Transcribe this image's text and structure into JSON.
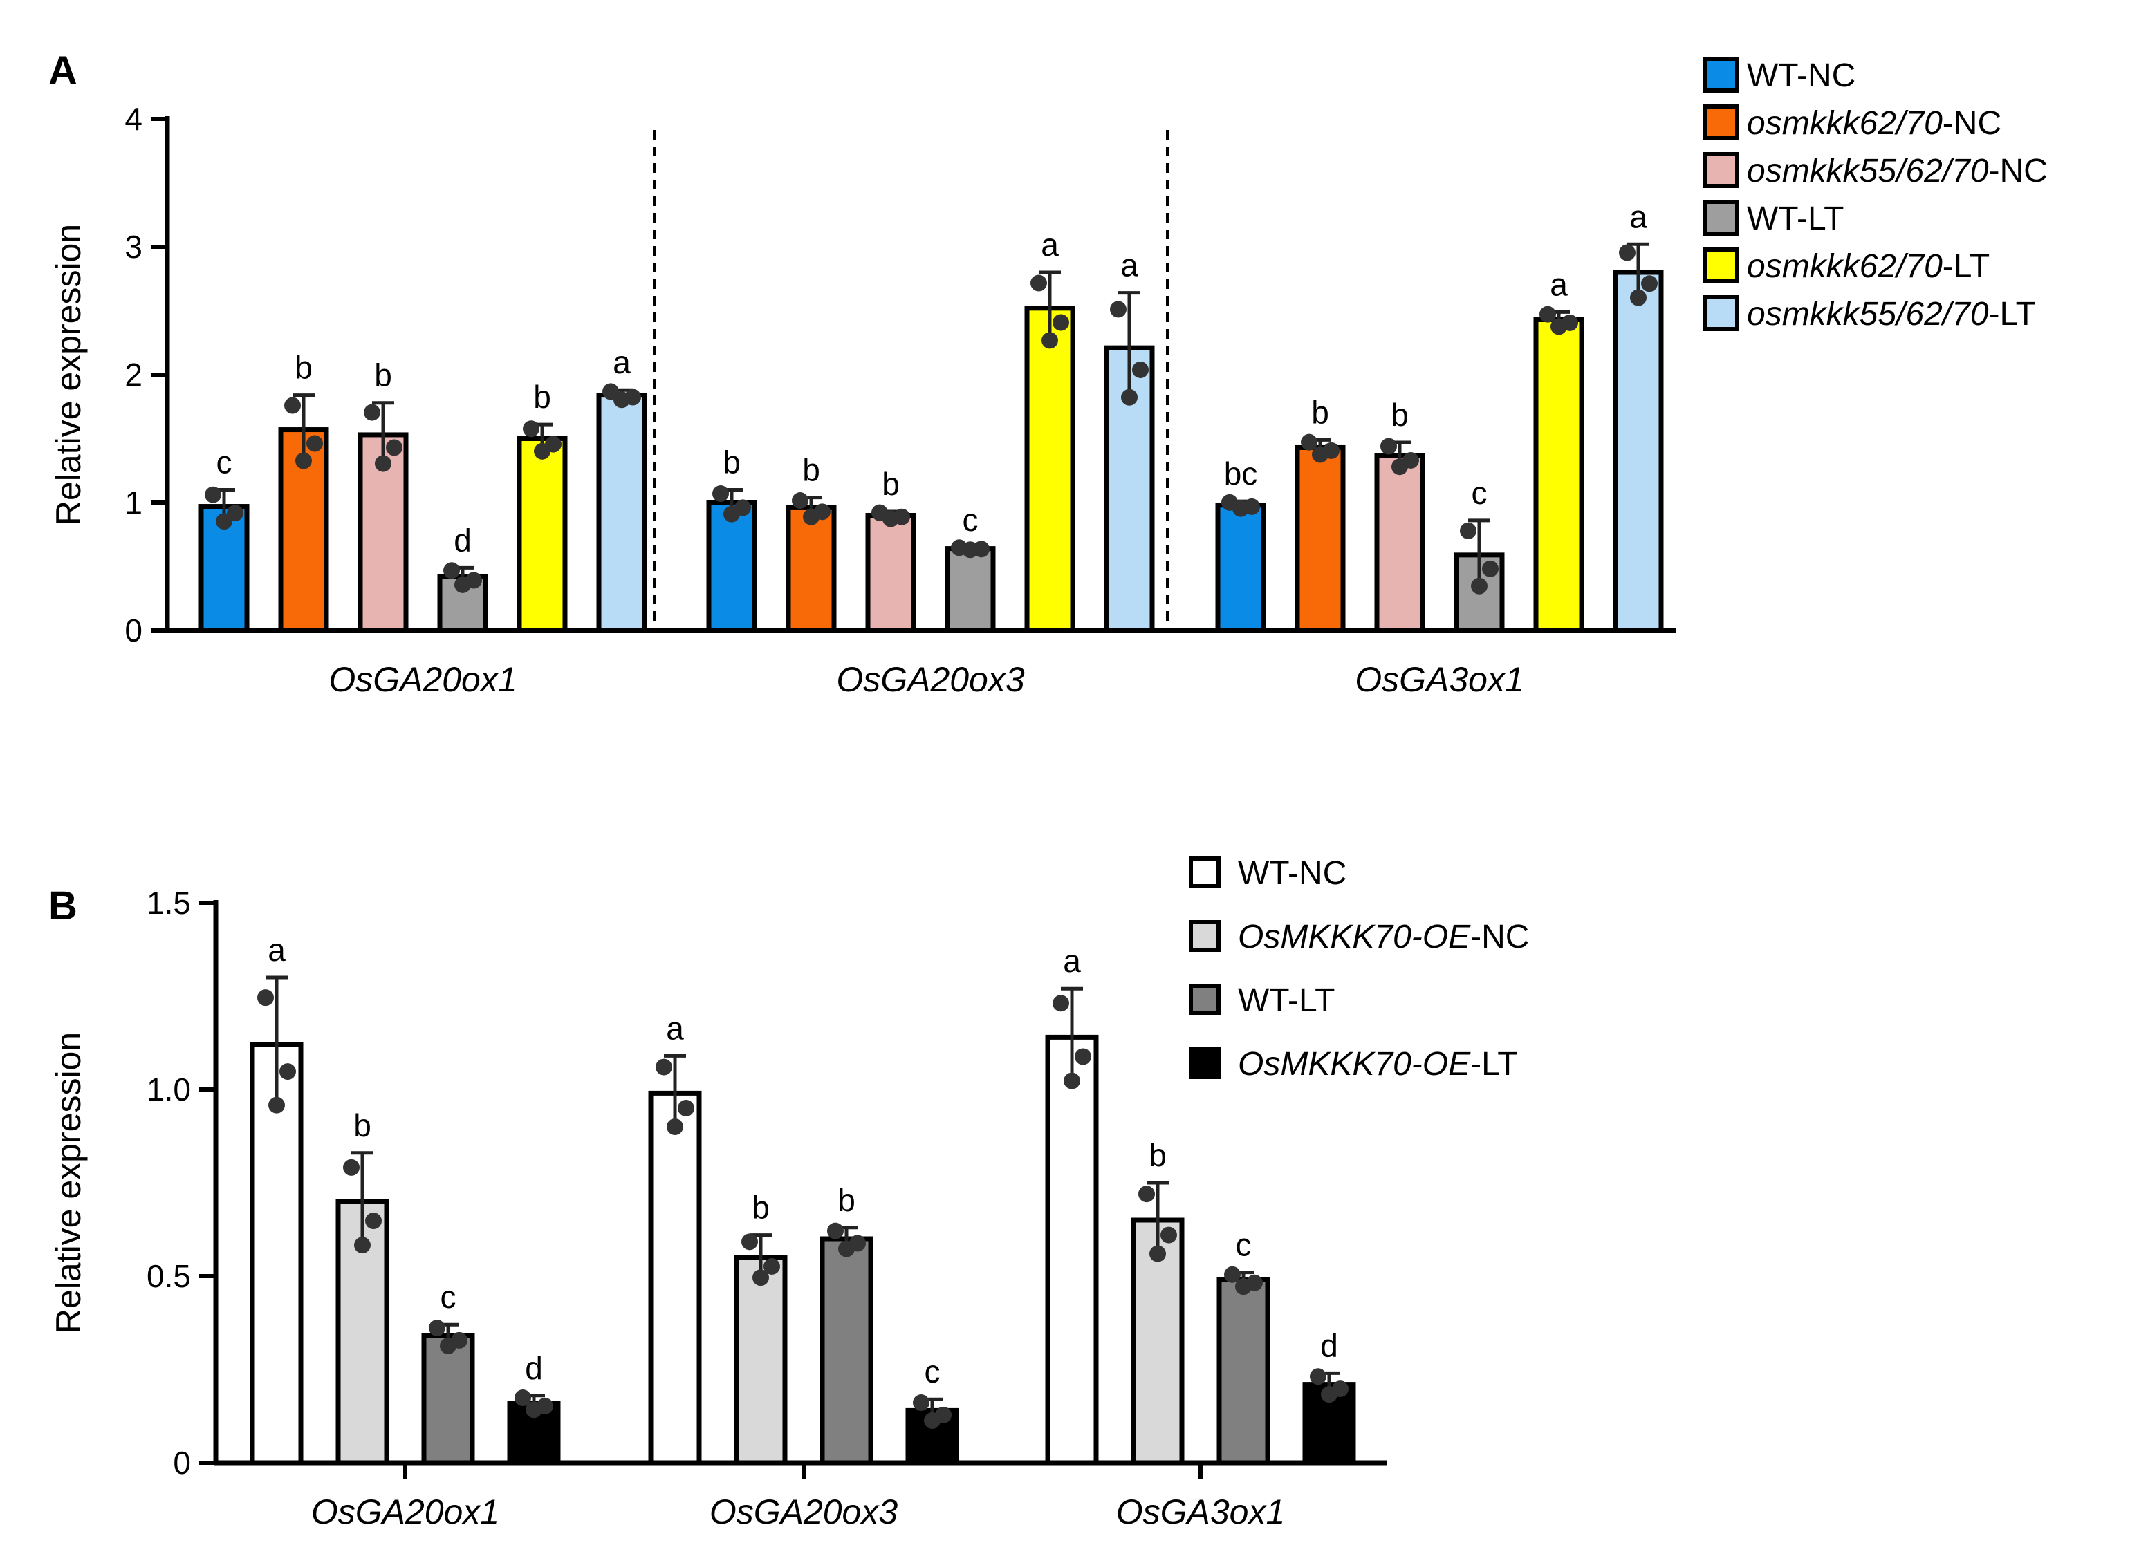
{
  "chart_data": [
    {
      "panel": "A",
      "type": "bar",
      "ylabel": "Relative expression",
      "ylim": [
        0,
        4
      ],
      "yticks": [
        "0",
        "1",
        "2",
        "3",
        "4"
      ],
      "categories": [
        "OsGA20ox1",
        "OsGA20ox3",
        "OsGA3ox1"
      ],
      "series": [
        {
          "name": "WT-NC",
          "name_parts": [
            {
              "t": "WT-NC",
              "i": false
            }
          ],
          "color": "#0a8be6",
          "values": [
            0.97,
            1.0,
            0.98
          ],
          "errors": [
            0.13,
            0.1,
            0.03
          ],
          "sig": [
            "c",
            "b",
            "bc"
          ]
        },
        {
          "name": "osmkkk62/70-NC",
          "name_parts": [
            {
              "t": "osmkkk62/70",
              "i": true
            },
            {
              "t": "-NC",
              "i": false
            }
          ],
          "color": "#f86a08",
          "values": [
            1.57,
            0.96,
            1.43
          ],
          "errors": [
            0.27,
            0.08,
            0.06
          ],
          "sig": [
            "b",
            "b",
            "b"
          ]
        },
        {
          "name": "osmkkk55/62/70-NC",
          "name_parts": [
            {
              "t": "osmkkk55/62/70",
              "i": true
            },
            {
              "t": "-NC",
              "i": false
            }
          ],
          "color": "#e8b4b2",
          "values": [
            1.53,
            0.9,
            1.37
          ],
          "errors": [
            0.25,
            0.03,
            0.1
          ],
          "sig": [
            "b",
            "b",
            "b"
          ]
        },
        {
          "name": "WT-LT",
          "name_parts": [
            {
              "t": "WT-LT",
              "i": false
            }
          ],
          "color": "#9e9e9e",
          "values": [
            0.42,
            0.64,
            0.59
          ],
          "errors": [
            0.07,
            0.01,
            0.27
          ],
          "sig": [
            "d",
            "c",
            "c"
          ]
        },
        {
          "name": "osmkkk62/70-LT",
          "name_parts": [
            {
              "t": "osmkkk62/70",
              "i": true
            },
            {
              "t": "-LT",
              "i": false
            }
          ],
          "color": "#ffff00",
          "values": [
            1.5,
            2.52,
            2.43
          ],
          "errors": [
            0.11,
            0.28,
            0.06
          ],
          "sig": [
            "b",
            "a",
            "a"
          ]
        },
        {
          "name": "osmkkk55/62/70-LT",
          "name_parts": [
            {
              "t": "osmkkk55/62/70",
              "i": true
            },
            {
              "t": "-LT",
              "i": false
            }
          ],
          "color": "#b9dcf6",
          "values": [
            1.84,
            2.21,
            2.8
          ],
          "errors": [
            0.04,
            0.43,
            0.22
          ],
          "sig": [
            "a",
            "a",
            "a"
          ]
        }
      ]
    },
    {
      "panel": "B",
      "type": "bar",
      "ylabel": "Relative expression",
      "ylim": [
        0,
        1.5
      ],
      "yticks": [
        "0",
        "0.5",
        "1.0",
        "1.5"
      ],
      "categories": [
        "OsGA20ox1",
        "OsGA20ox3",
        "OsGA3ox1"
      ],
      "series": [
        {
          "name": "WT-NC",
          "name_parts": [
            {
              "t": "WT-NC",
              "i": false
            }
          ],
          "color": "#ffffff",
          "values": [
            1.12,
            0.99,
            1.14
          ],
          "errors": [
            0.18,
            0.1,
            0.13
          ],
          "sig": [
            "a",
            "a",
            "a"
          ]
        },
        {
          "name": "OsMKKK70-OE-NC",
          "name_parts": [
            {
              "t": "OsMKKK70-OE",
              "i": true
            },
            {
              "t": "-NC",
              "i": false
            }
          ],
          "color": "#d9d9d9",
          "values": [
            0.7,
            0.55,
            0.65
          ],
          "errors": [
            0.13,
            0.06,
            0.1
          ],
          "sig": [
            "b",
            "b",
            "b"
          ]
        },
        {
          "name": "WT-LT",
          "name_parts": [
            {
              "t": "WT-LT",
              "i": false
            }
          ],
          "color": "#808080",
          "values": [
            0.34,
            0.6,
            0.49
          ],
          "errors": [
            0.03,
            0.03,
            0.02
          ],
          "sig": [
            "c",
            "b",
            "c"
          ]
        },
        {
          "name": "OsMKKK70-OE-LT",
          "name_parts": [
            {
              "t": "OsMKKK70-OE",
              "i": true
            },
            {
              "t": "-LT",
              "i": false
            }
          ],
          "color": "#000000",
          "values": [
            0.16,
            0.14,
            0.21
          ],
          "errors": [
            0.02,
            0.03,
            0.03
          ],
          "sig": [
            "d",
            "c",
            "d"
          ]
        }
      ]
    }
  ]
}
